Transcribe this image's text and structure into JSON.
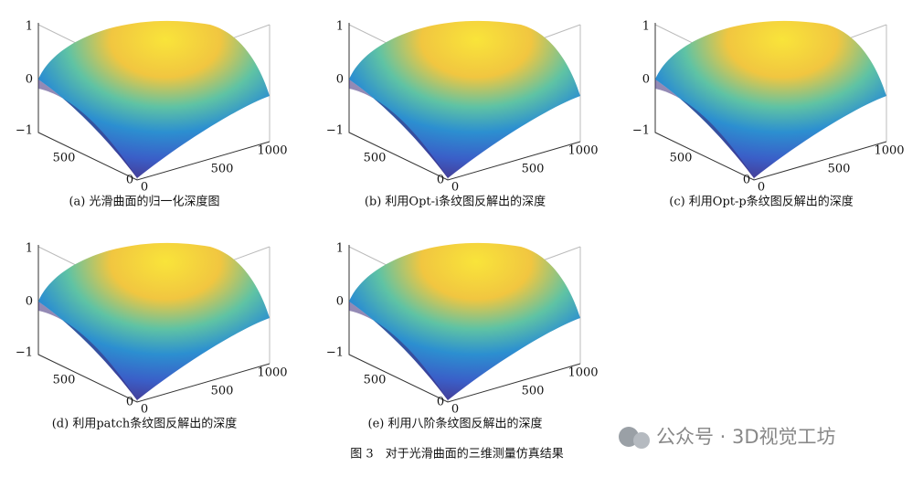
{
  "panels": [
    {
      "caption": "(a) 光滑曲面的归一化深度图",
      "z_ticks": [
        "1",
        "0",
        "−1"
      ],
      "y_ticks": [
        "500",
        "0"
      ],
      "x_ticks": [
        "0",
        "500",
        "1000"
      ]
    },
    {
      "caption": "(b) 利用Opt-i条纹图反解出的深度",
      "z_ticks": [
        "1",
        "0",
        "−1"
      ],
      "y_ticks": [
        "500",
        "0"
      ],
      "x_ticks": [
        "0",
        "500",
        "1000"
      ]
    },
    {
      "caption": "(c) 利用Opt-p条纹图反解出的深度",
      "z_ticks": [
        "1",
        "0",
        "−1"
      ],
      "y_ticks": [
        "500",
        "0"
      ],
      "x_ticks": [
        "0",
        "500",
        "1000"
      ]
    },
    {
      "caption": "(d) 利用patch条纹图反解出的深度",
      "z_ticks": [
        "1",
        "0",
        "−1"
      ],
      "y_ticks": [
        "500",
        "0"
      ],
      "x_ticks": [
        "0",
        "500",
        "1000"
      ]
    },
    {
      "caption": "(e) 利用八阶条纹图反解出的深度",
      "z_ticks": [
        "1",
        "0",
        "−1"
      ],
      "y_ticks": [
        "500",
        "0"
      ],
      "x_ticks": [
        "0",
        "500",
        "1000"
      ]
    }
  ],
  "figure_caption": "图 3　对于光滑曲面的三维测量仿真结果",
  "watermark": "公众号 · 3D视觉工坊"
}
